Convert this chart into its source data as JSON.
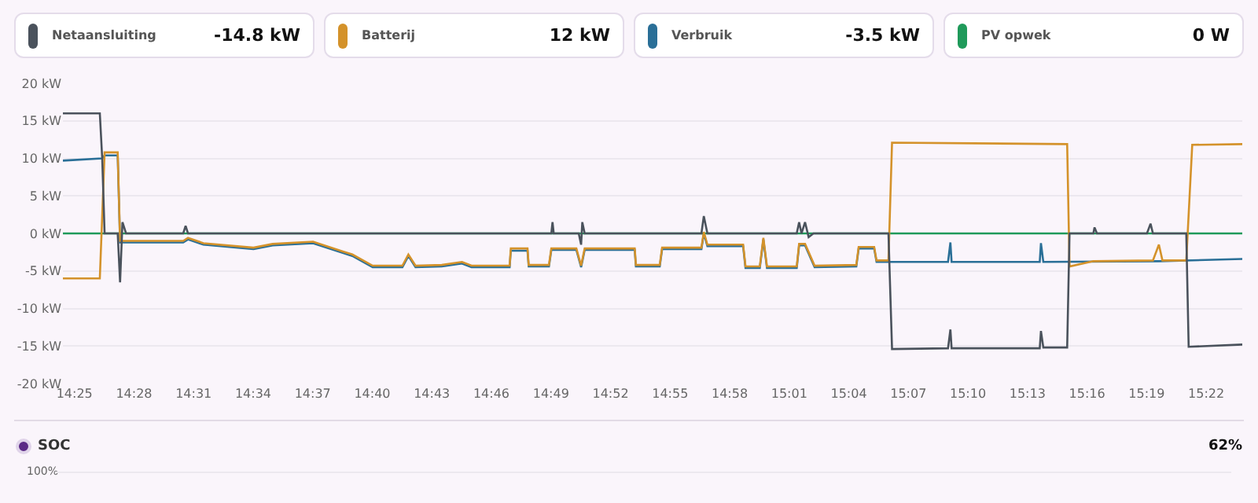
{
  "chart_data": [
    {
      "type": "line",
      "legend": "top",
      "grid": "y",
      "marker": "none",
      "annotations": [
        "-14.8 kW",
        "12 kW",
        "-3.5 kW",
        "0 W"
      ],
      "xlim": [
        14.407,
        15.397
      ],
      "xticks": [
        {
          "value": 14.4167,
          "label": "14:25"
        },
        {
          "value": 14.4667,
          "label": "14:28"
        },
        {
          "value": 14.5167,
          "label": "14:31"
        },
        {
          "value": 14.5667,
          "label": "14:34"
        },
        {
          "value": 14.6167,
          "label": "14:37"
        },
        {
          "value": 14.6667,
          "label": "14:40"
        },
        {
          "value": 14.7167,
          "label": "14:43"
        },
        {
          "value": 14.7667,
          "label": "14:46"
        },
        {
          "value": 14.8167,
          "label": "14:49"
        },
        {
          "value": 14.8667,
          "label": "14:52"
        },
        {
          "value": 14.9167,
          "label": "14:55"
        },
        {
          "value": 14.9667,
          "label": "14:58"
        },
        {
          "value": 15.0167,
          "label": "15:01"
        },
        {
          "value": 15.0667,
          "label": "15:04"
        },
        {
          "value": 15.1167,
          "label": "15:07"
        },
        {
          "value": 15.1667,
          "label": "15:10"
        },
        {
          "value": 15.2167,
          "label": "15:13"
        },
        {
          "value": 15.2667,
          "label": "15:16"
        },
        {
          "value": 15.3167,
          "label": "15:19"
        },
        {
          "value": 15.3667,
          "label": "15:22"
        }
      ],
      "ylim": [
        -20,
        20
      ],
      "yticks": [
        {
          "value": -20,
          "label": "-20 kW"
        },
        {
          "value": -15,
          "label": "-15 kW"
        },
        {
          "value": -10,
          "label": "-10 kW"
        },
        {
          "value": -5,
          "label": "-5 kW"
        },
        {
          "value": 0,
          "label": "0 kW"
        },
        {
          "value": 5,
          "label": "5 kW"
        },
        {
          "value": 10,
          "label": "10 kW"
        },
        {
          "value": 15,
          "label": "15 kW"
        },
        {
          "value": 20,
          "label": "20 kW"
        }
      ],
      "series": [
        {
          "name": "Netaansluiting",
          "color": "#4a525c",
          "x": [
            14.407,
            14.438,
            14.44,
            14.442,
            14.453,
            14.455,
            14.457,
            14.46,
            14.508,
            14.51,
            14.512,
            14.817,
            14.818,
            14.819,
            14.84,
            14.842,
            14.843,
            14.845,
            14.943,
            14.945,
            14.948,
            15.023,
            15.025,
            15.027,
            15.03,
            15.033,
            15.037,
            15.1,
            15.103,
            15.15,
            15.152,
            15.153,
            15.227,
            15.228,
            15.23,
            15.25,
            15.252,
            15.272,
            15.273,
            15.275,
            15.317,
            15.32,
            15.322,
            15.35,
            15.352,
            15.397
          ],
          "values": [
            16,
            16,
            10,
            0,
            0,
            -6.5,
            1.5,
            0,
            0,
            1,
            0,
            0,
            1.5,
            0,
            0,
            -1.5,
            1.5,
            0,
            0,
            2.3,
            0,
            0,
            1.5,
            0,
            1.5,
            -0.5,
            0,
            0,
            -15.4,
            -15.3,
            -12.8,
            -15.3,
            -15.3,
            -13,
            -15.2,
            -15.2,
            0,
            0,
            0.8,
            0,
            0,
            1.3,
            0,
            0,
            -15.1,
            -14.8
          ]
        },
        {
          "name": "Batterij",
          "color": "#d4922a",
          "x": [
            14.407,
            14.438,
            14.442,
            14.453,
            14.455,
            14.508,
            14.512,
            14.525,
            14.567,
            14.583,
            14.617,
            14.642,
            14.65,
            14.667,
            14.692,
            14.697,
            14.703,
            14.725,
            14.742,
            14.75,
            14.782,
            14.783,
            14.797,
            14.798,
            14.815,
            14.817,
            14.838,
            14.842,
            14.845,
            14.887,
            14.888,
            14.908,
            14.91,
            14.943,
            14.945,
            14.948,
            14.978,
            14.98,
            14.992,
            14.995,
            14.998,
            15.023,
            15.025,
            15.03,
            15.038,
            15.073,
            15.075,
            15.088,
            15.09,
            15.1,
            15.103,
            15.25,
            15.252,
            15.272,
            15.322,
            15.327,
            15.33,
            15.35,
            15.355,
            15.397
          ],
          "values": [
            -6,
            -6,
            10.8,
            10.8,
            -1,
            -1,
            -0.6,
            -1.3,
            -1.9,
            -1.4,
            -1.1,
            -2.4,
            -2.8,
            -4.3,
            -4.3,
            -2.8,
            -4.3,
            -4.2,
            -3.8,
            -4.3,
            -4.3,
            -2,
            -2,
            -4.2,
            -4.2,
            -2,
            -2,
            -4.3,
            -2,
            -2,
            -4.2,
            -4.2,
            -1.9,
            -1.9,
            0.2,
            -1.5,
            -1.5,
            -4.4,
            -4.4,
            -0.6,
            -4.4,
            -4.4,
            -1.4,
            -1.4,
            -4.3,
            -4.2,
            -1.8,
            -1.8,
            -3.6,
            -3.6,
            12.1,
            11.9,
            -4.4,
            -3.7,
            -3.6,
            -1.5,
            -3.6,
            -3.6,
            11.8,
            11.9
          ]
        },
        {
          "name": "Verbruik",
          "color": "#2a6f97",
          "x": [
            14.407,
            14.44,
            14.442,
            14.453,
            14.455,
            14.508,
            14.512,
            14.525,
            14.567,
            14.583,
            14.617,
            14.642,
            14.65,
            14.667,
            14.692,
            14.697,
            14.703,
            14.725,
            14.742,
            14.75,
            14.782,
            14.783,
            14.797,
            14.798,
            14.815,
            14.817,
            14.838,
            14.842,
            14.845,
            14.887,
            14.888,
            14.908,
            14.91,
            14.943,
            14.945,
            14.948,
            14.978,
            14.98,
            14.992,
            14.995,
            14.998,
            15.023,
            15.025,
            15.03,
            15.038,
            15.073,
            15.075,
            15.088,
            15.09,
            15.15,
            15.152,
            15.153,
            15.227,
            15.228,
            15.23,
            15.327,
            15.397
          ],
          "values": [
            9.7,
            10,
            10.4,
            10.4,
            -1.2,
            -1.2,
            -0.8,
            -1.5,
            -2.1,
            -1.6,
            -1.3,
            -2.6,
            -3,
            -4.5,
            -4.5,
            -3,
            -4.5,
            -4.4,
            -4,
            -4.5,
            -4.5,
            -2.3,
            -2.3,
            -4.4,
            -4.4,
            -2.2,
            -2.2,
            -4.5,
            -2.2,
            -2.2,
            -4.4,
            -4.4,
            -2.1,
            -2.1,
            0,
            -1.7,
            -1.7,
            -4.6,
            -4.6,
            -0.8,
            -4.6,
            -4.6,
            -1.6,
            -1.6,
            -4.5,
            -4.4,
            -2,
            -2,
            -3.8,
            -3.8,
            -1.2,
            -3.8,
            -3.8,
            -1.3,
            -3.8,
            -3.7,
            -3.4
          ]
        },
        {
          "name": "PV opwek",
          "color": "#1f9a5a",
          "x": [
            14.407,
            15.397
          ],
          "values": [
            0,
            0
          ]
        }
      ]
    },
    {
      "type": "other",
      "annotations": [
        "SOC",
        "62%",
        "100%"
      ]
    }
  ]
}
